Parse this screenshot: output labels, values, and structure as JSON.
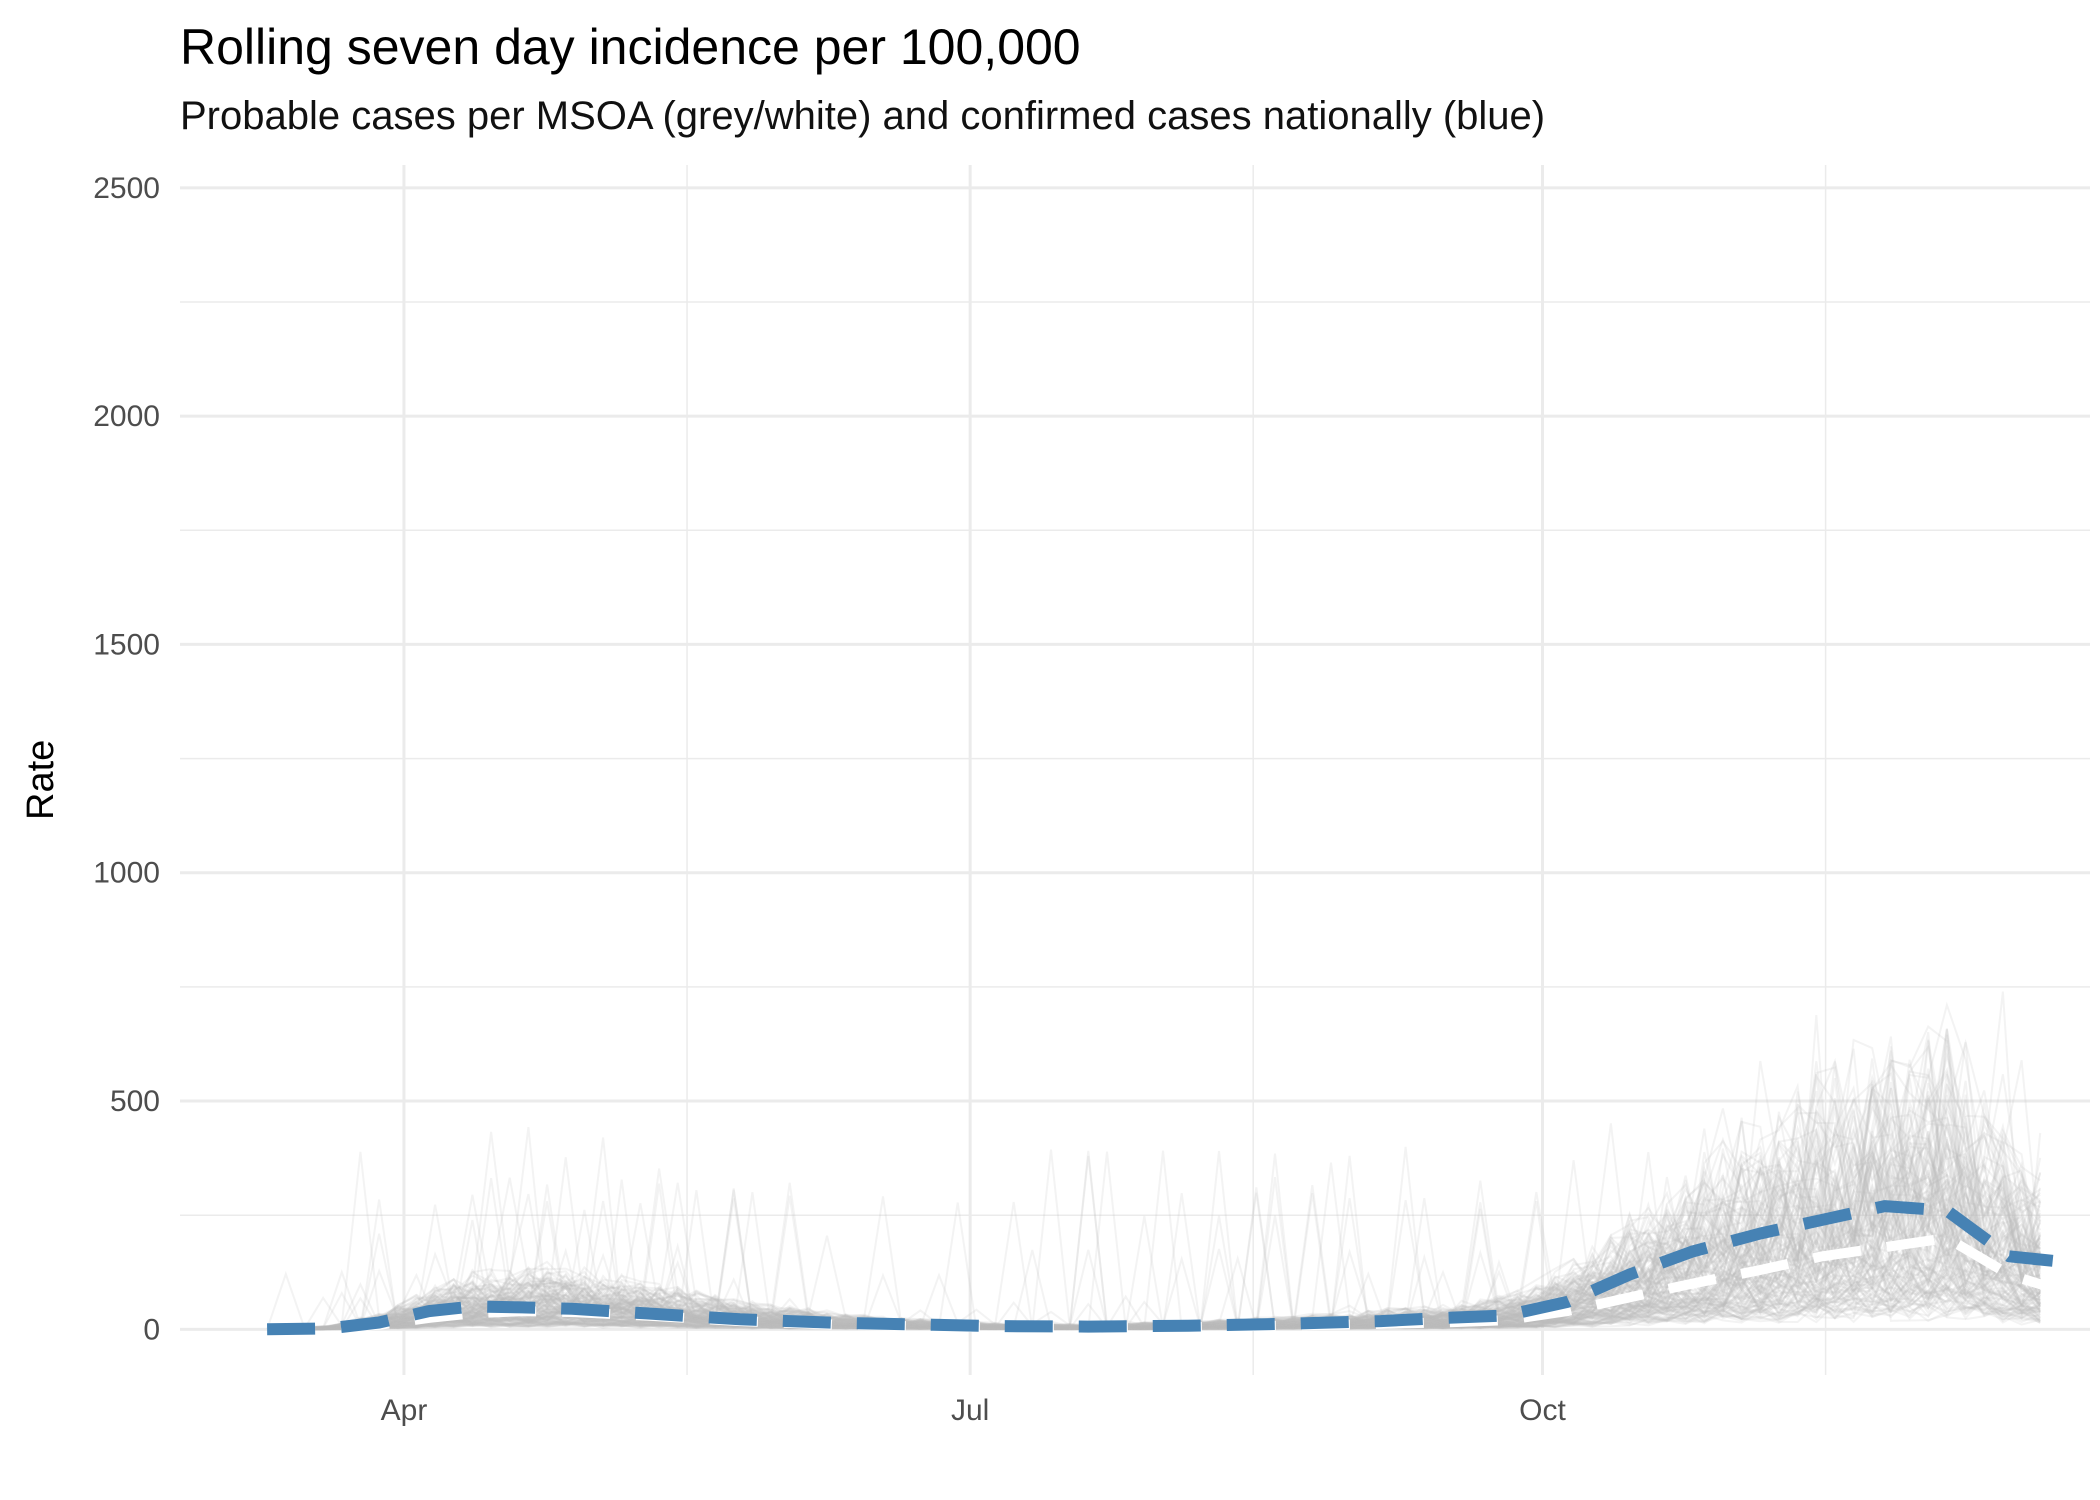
{
  "chart_data": {
    "type": "line",
    "title": "Rolling seven day incidence per 100,000",
    "subtitle": "Probable cases per MSOA (grey/white) and confirmed cases nationally (blue)",
    "xlabel": "",
    "ylabel": "Rate",
    "x_ticks": [
      {
        "label": "Apr",
        "date": "2020-04-01"
      },
      {
        "label": "Jul",
        "date": "2020-07-01"
      },
      {
        "label": "Oct",
        "date": "2020-10-01"
      }
    ],
    "y_ticks": [
      0,
      500,
      1000,
      1500,
      2000,
      2500
    ],
    "xlim": [
      "2020-02-25",
      "2020-12-28"
    ],
    "ylim": [
      -100,
      2550
    ],
    "grid": true,
    "legend": "none",
    "colors": {
      "msoa_lines": "#bdbdbd",
      "probable_mean": "#ffffff",
      "confirmed_national": "#4682b4",
      "grid": "#ebebeb"
    },
    "series": [
      {
        "line_style": "dashed",
        "color": "#ffffff",
        "x": [
          "2020-03-10",
          "2020-03-20",
          "2020-03-28",
          "2020-04-05",
          "2020-04-12",
          "2020-04-20",
          "2020-04-28",
          "2020-05-10",
          "2020-05-25",
          "2020-06-10",
          "2020-06-25",
          "2020-07-05",
          "2020-07-20",
          "2020-08-05",
          "2020-08-20",
          "2020-09-05",
          "2020-09-15",
          "2020-09-25",
          "2020-10-05",
          "2020-10-15",
          "2020-10-25",
          "2020-11-05",
          "2020-11-15",
          "2020-11-25",
          "2020-12-05",
          "2020-12-15",
          "2020-12-22"
        ],
        "y": [
          0,
          2,
          10,
          25,
          35,
          40,
          38,
          30,
          18,
          10,
          6,
          4,
          3,
          5,
          8,
          12,
          15,
          20,
          40,
          70,
          100,
          130,
          160,
          180,
          200,
          120,
          90
        ]
      },
      {
        "line_style": "dashed",
        "color": "#4682b4",
        "x": [
          "2020-03-10",
          "2020-03-20",
          "2020-03-28",
          "2020-04-05",
          "2020-04-12",
          "2020-04-20",
          "2020-04-28",
          "2020-05-10",
          "2020-05-25",
          "2020-06-10",
          "2020-06-25",
          "2020-07-05",
          "2020-07-20",
          "2020-08-05",
          "2020-08-20",
          "2020-09-05",
          "2020-09-15",
          "2020-09-25",
          "2020-10-05",
          "2020-10-15",
          "2020-10-25",
          "2020-11-05",
          "2020-11-15",
          "2020-11-25",
          "2020-12-05",
          "2020-12-15",
          "2020-12-22"
        ],
        "y": [
          0,
          2,
          15,
          40,
          50,
          48,
          45,
          35,
          22,
          14,
          10,
          7,
          6,
          8,
          12,
          18,
          25,
          30,
          60,
          120,
          170,
          210,
          240,
          270,
          260,
          160,
          150
        ]
      }
    ]
  }
}
